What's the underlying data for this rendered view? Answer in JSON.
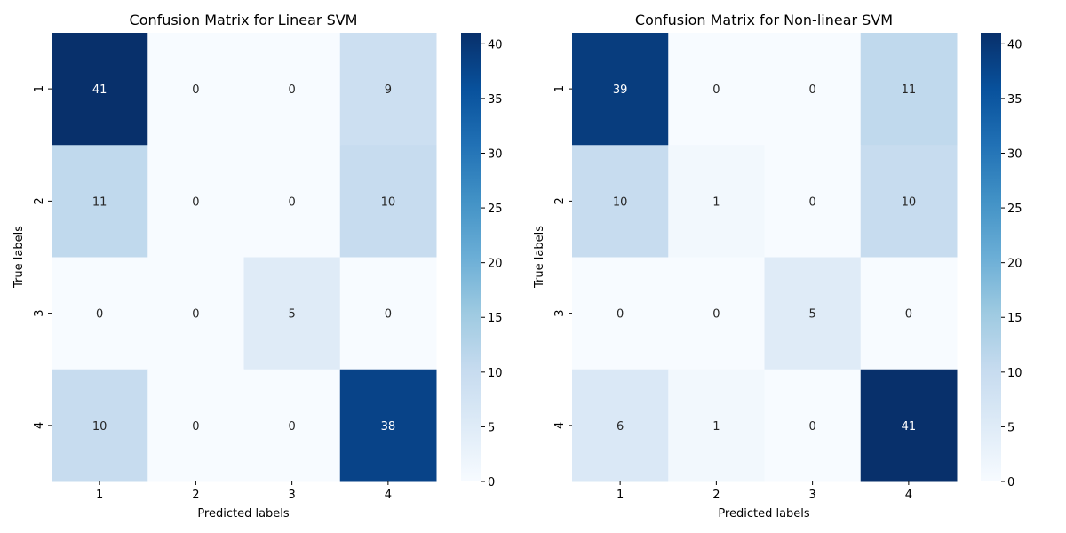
{
  "chart_data": [
    {
      "type": "heatmap",
      "title": "Confusion Matrix for Linear SVM",
      "xlabel": "Predicted labels",
      "ylabel": "True labels",
      "x_categories": [
        "1",
        "2",
        "3",
        "4"
      ],
      "y_categories": [
        "1",
        "2",
        "3",
        "4"
      ],
      "values": [
        [
          41,
          0,
          0,
          9
        ],
        [
          11,
          0,
          0,
          10
        ],
        [
          0,
          0,
          5,
          0
        ],
        [
          10,
          0,
          0,
          38
        ]
      ],
      "colormap": "Blues",
      "colorbar": {
        "min": 0,
        "max": 41,
        "ticks": [
          0,
          5,
          10,
          15,
          20,
          25,
          30,
          35,
          40
        ]
      }
    },
    {
      "type": "heatmap",
      "title": "Confusion Matrix for Non-linear SVM",
      "xlabel": "Predicted labels",
      "ylabel": "True labels",
      "x_categories": [
        "1",
        "2",
        "3",
        "4"
      ],
      "y_categories": [
        "1",
        "2",
        "3",
        "4"
      ],
      "values": [
        [
          39,
          0,
          0,
          11
        ],
        [
          10,
          1,
          0,
          10
        ],
        [
          0,
          0,
          5,
          0
        ],
        [
          6,
          1,
          0,
          41
        ]
      ],
      "colormap": "Blues",
      "colorbar": {
        "min": 0,
        "max": 41,
        "ticks": [
          0,
          5,
          10,
          15,
          20,
          25,
          30,
          35,
          40
        ]
      }
    }
  ]
}
